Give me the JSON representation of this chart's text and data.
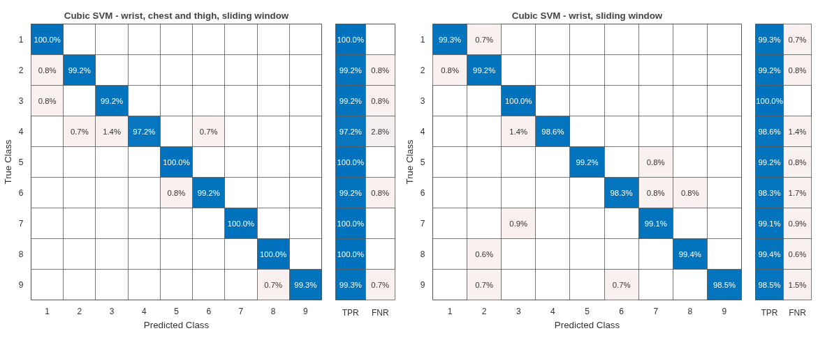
{
  "chart_data": [
    {
      "type": "heatmap",
      "title": "Cubic SVM - wrist, chest and thigh, sliding window",
      "xlabel": "Predicted Class",
      "ylabel": "True Class",
      "colors": [
        "#fbf2ef",
        "#0072bd"
      ],
      "categories": [
        "1",
        "2",
        "3",
        "4",
        "5",
        "6",
        "7",
        "8",
        "9"
      ],
      "y_categories": [
        "1",
        "2",
        "3",
        "4",
        "5",
        "6",
        "7",
        "8",
        "9"
      ],
      "cells": [
        [
          100.0,
          null,
          null,
          null,
          null,
          null,
          null,
          null,
          null
        ],
        [
          0.8,
          99.2,
          null,
          null,
          null,
          null,
          null,
          null,
          null
        ],
        [
          0.8,
          null,
          99.2,
          null,
          null,
          null,
          null,
          null,
          null
        ],
        [
          null,
          0.7,
          1.4,
          97.2,
          null,
          0.7,
          null,
          null,
          null
        ],
        [
          null,
          null,
          null,
          null,
          100.0,
          null,
          null,
          null,
          null
        ],
        [
          null,
          null,
          null,
          null,
          0.8,
          99.2,
          null,
          null,
          null
        ],
        [
          null,
          null,
          null,
          null,
          null,
          null,
          100.0,
          null,
          null
        ],
        [
          null,
          null,
          null,
          null,
          null,
          null,
          null,
          100.0,
          null
        ],
        [
          null,
          null,
          null,
          null,
          null,
          null,
          null,
          0.7,
          99.3
        ]
      ],
      "cell_labels": [
        [
          "100.0%",
          null,
          null,
          null,
          null,
          null,
          null,
          null,
          null
        ],
        [
          "0.8%",
          "99.2%",
          null,
          null,
          null,
          null,
          null,
          null,
          null
        ],
        [
          "0.8%",
          null,
          "99.2%",
          null,
          null,
          null,
          null,
          null,
          null
        ],
        [
          null,
          "0.7%",
          "1.4%",
          "97.2%",
          null,
          "0.7%",
          null,
          null,
          null
        ],
        [
          null,
          null,
          null,
          null,
          "100.0%",
          null,
          null,
          null,
          null
        ],
        [
          null,
          null,
          null,
          null,
          "0.8%",
          "99.2%",
          null,
          null,
          null
        ],
        [
          null,
          null,
          null,
          null,
          null,
          null,
          "100.0%",
          null,
          null
        ],
        [
          null,
          null,
          null,
          null,
          null,
          null,
          null,
          "100.0%",
          null
        ],
        [
          null,
          null,
          null,
          null,
          null,
          null,
          null,
          "0.7%",
          "99.3%"
        ]
      ]
    },
    {
      "type": "heatmap",
      "colors": [
        "#fbf2ef",
        "#0072bd"
      ],
      "tick_labels": "x",
      "categories": [
        "TPR",
        "FNR"
      ],
      "y_categories": [
        "1",
        "2",
        "3",
        "4",
        "5",
        "6",
        "7",
        "8",
        "9"
      ],
      "cells": [
        [
          100.0,
          null
        ],
        [
          99.2,
          0.8
        ],
        [
          99.2,
          0.8
        ],
        [
          97.2,
          2.8
        ],
        [
          100.0,
          null
        ],
        [
          99.2,
          0.8
        ],
        [
          100.0,
          null
        ],
        [
          100.0,
          null
        ],
        [
          99.3,
          0.7
        ]
      ],
      "cell_labels": [
        [
          "100.0%",
          null
        ],
        [
          "99.2%",
          "0.8%"
        ],
        [
          "99.2%",
          "0.8%"
        ],
        [
          "97.2%",
          "2.8%"
        ],
        [
          "100.0%",
          null
        ],
        [
          "99.2%",
          "0.8%"
        ],
        [
          "100.0%",
          null
        ],
        [
          "100.0%",
          null
        ],
        [
          "99.3%",
          "0.7%"
        ]
      ]
    },
    {
      "type": "heatmap",
      "title": "Cubic SVM - wrist, sliding window",
      "xlabel": "Predicted Class",
      "ylabel": "True Class",
      "colors": [
        "#fbf2ef",
        "#0072bd"
      ],
      "categories": [
        "1",
        "2",
        "3",
        "4",
        "5",
        "6",
        "7",
        "8",
        "9"
      ],
      "y_categories": [
        "1",
        "2",
        "3",
        "4",
        "5",
        "6",
        "7",
        "8",
        "9"
      ],
      "cells": [
        [
          99.3,
          0.7,
          null,
          null,
          null,
          null,
          null,
          null,
          null
        ],
        [
          0.8,
          99.2,
          null,
          null,
          null,
          null,
          null,
          null,
          null
        ],
        [
          null,
          null,
          100.0,
          null,
          null,
          null,
          null,
          null,
          null
        ],
        [
          null,
          null,
          1.4,
          98.6,
          null,
          null,
          null,
          null,
          null
        ],
        [
          null,
          null,
          null,
          null,
          99.2,
          null,
          0.8,
          null,
          null
        ],
        [
          null,
          null,
          null,
          null,
          null,
          98.3,
          0.8,
          0.8,
          null
        ],
        [
          null,
          null,
          0.9,
          null,
          null,
          null,
          99.1,
          null,
          null
        ],
        [
          null,
          0.6,
          null,
          null,
          null,
          null,
          null,
          99.4,
          null
        ],
        [
          null,
          0.7,
          null,
          null,
          null,
          0.7,
          null,
          null,
          98.5
        ]
      ],
      "cell_labels": [
        [
          "99.3%",
          "0.7%",
          null,
          null,
          null,
          null,
          null,
          null,
          null
        ],
        [
          "0.8%",
          "99.2%",
          null,
          null,
          null,
          null,
          null,
          null,
          null
        ],
        [
          null,
          null,
          "100.0%",
          null,
          null,
          null,
          null,
          null,
          null
        ],
        [
          null,
          null,
          "1.4%",
          "98.6%",
          null,
          null,
          null,
          null,
          null
        ],
        [
          null,
          null,
          null,
          null,
          "99.2%",
          null,
          "0.8%",
          null,
          null
        ],
        [
          null,
          null,
          null,
          null,
          null,
          "98.3%",
          "0.8%",
          "0.8%",
          null
        ],
        [
          null,
          null,
          "0.9%",
          null,
          null,
          null,
          "99.1%",
          null,
          null
        ],
        [
          null,
          "0.6%",
          null,
          null,
          null,
          null,
          null,
          "99.4%",
          null
        ],
        [
          null,
          "0.7%",
          null,
          null,
          null,
          "0.7%",
          null,
          null,
          "98.5%"
        ]
      ]
    },
    {
      "type": "heatmap",
      "colors": [
        "#fbf2ef",
        "#0072bd"
      ],
      "tick_labels": "x",
      "categories": [
        "TPR",
        "FNR"
      ],
      "y_categories": [
        "1",
        "2",
        "3",
        "4",
        "5",
        "6",
        "7",
        "8",
        "9"
      ],
      "cells": [
        [
          99.3,
          0.7
        ],
        [
          99.2,
          0.8
        ],
        [
          100.0,
          null
        ],
        [
          98.6,
          1.4
        ],
        [
          99.2,
          0.8
        ],
        [
          98.3,
          1.7
        ],
        [
          99.1,
          0.9
        ],
        [
          99.4,
          0.6
        ],
        [
          98.5,
          1.5
        ]
      ],
      "cell_labels": [
        [
          "99.3%",
          "0.7%"
        ],
        [
          "99.2%",
          "0.8%"
        ],
        [
          "100.0%",
          null
        ],
        [
          "98.6%",
          "1.4%"
        ],
        [
          "99.2%",
          "0.8%"
        ],
        [
          "98.3%",
          "1.7%"
        ],
        [
          "99.1%",
          "0.9%"
        ],
        [
          "99.4%",
          "0.6%"
        ],
        [
          "98.5%",
          "1.5%"
        ]
      ]
    }
  ]
}
